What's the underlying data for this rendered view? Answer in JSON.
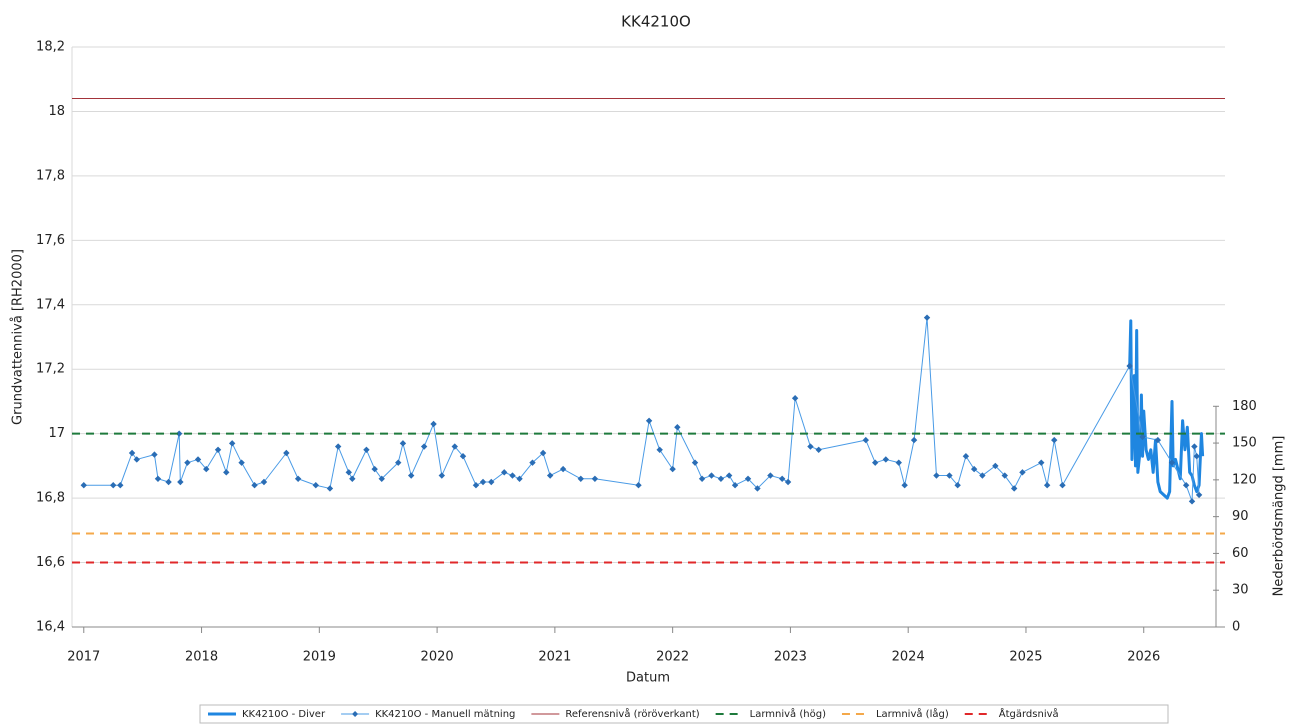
{
  "chart_data": {
    "type": "line",
    "title": "KK4210O",
    "x_label": "Datum",
    "y_label": "Grundvattennivå [RH2000]",
    "y2_label": "Nederbördsmängd [mm]",
    "xlim": [
      2016.9,
      2026.69
    ],
    "xticks": [
      2017,
      2018,
      2019,
      2020,
      2021,
      2022,
      2023,
      2024,
      2025,
      2026
    ],
    "ylim": [
      16.4,
      18.2
    ],
    "yticks": [
      {
        "value": 16.4,
        "label": "16,4"
      },
      {
        "value": 16.6,
        "label": "16,6"
      },
      {
        "value": 16.8,
        "label": "16,8"
      },
      17,
      {
        "value": 17.2,
        "label": "17,2"
      },
      {
        "value": 17.4,
        "label": "17,4"
      },
      {
        "value": 17.6,
        "label": "17,6"
      },
      {
        "value": 17.8,
        "label": "17,8"
      },
      18,
      {
        "value": 18.2,
        "label": "18,2"
      }
    ],
    "y2lim": [
      0,
      473
    ],
    "y2ticks": [
      0,
      30,
      60,
      90,
      120,
      150,
      180
    ],
    "grid": true,
    "legend": "bottom",
    "series": [
      {
        "name": "KK4210O - Diver",
        "color": "#1f86e0",
        "width": 3,
        "x": [
          2025.88,
          2025.89,
          2025.9,
          2025.92,
          2025.93,
          2025.94,
          2025.95,
          2025.97,
          2025.98,
          2025.99,
          2026.0,
          2026.02,
          2026.04,
          2026.06,
          2026.08,
          2026.1,
          2026.12,
          2026.14,
          2026.17,
          2026.2,
          2026.22,
          2026.24,
          2026.25,
          2026.27,
          2026.29,
          2026.31,
          2026.33,
          2026.35,
          2026.37,
          2026.39,
          2026.41,
          2026.43,
          2026.45,
          2026.47,
          2026.49,
          2026.5
        ],
        "values": [
          17.2,
          17.35,
          16.92,
          17.18,
          16.9,
          17.32,
          16.88,
          16.95,
          17.12,
          16.93,
          17.07,
          16.95,
          16.92,
          16.95,
          16.88,
          16.98,
          16.85,
          16.82,
          16.81,
          16.8,
          16.82,
          17.1,
          16.9,
          16.92,
          16.89,
          16.86,
          17.04,
          16.95,
          17.02,
          16.88,
          16.87,
          16.84,
          16.82,
          16.84,
          17.0,
          16.93
        ]
      },
      {
        "name": "KK4210O - Manuell mätning",
        "color": "#4a9be6",
        "width": 1,
        "marker": "diamond",
        "marker_color": "#2a6db5",
        "x": [
          2017.0,
          2017.25,
          2017.31,
          2017.41,
          2017.45,
          2017.6,
          2017.63,
          2017.72,
          2017.81,
          2017.82,
          2017.88,
          2017.97,
          2018.04,
          2018.14,
          2018.21,
          2018.26,
          2018.34,
          2018.45,
          2018.53,
          2018.72,
          2018.82,
          2018.97,
          2019.09,
          2019.16,
          2019.25,
          2019.28,
          2019.4,
          2019.47,
          2019.53,
          2019.67,
          2019.71,
          2019.78,
          2019.89,
          2019.97,
          2020.04,
          2020.15,
          2020.22,
          2020.33,
          2020.39,
          2020.46,
          2020.57,
          2020.64,
          2020.7,
          2020.81,
          2020.9,
          2020.96,
          2021.07,
          2021.22,
          2021.34,
          2021.71,
          2021.8,
          2021.89,
          2022.0,
          2022.04,
          2022.19,
          2022.25,
          2022.33,
          2022.41,
          2022.48,
          2022.53,
          2022.64,
          2022.72,
          2022.83,
          2022.93,
          2022.98,
          2023.04,
          2023.17,
          2023.24,
          2023.64,
          2023.72,
          2023.81,
          2023.92,
          2023.97,
          2024.05,
          2024.16,
          2024.24,
          2024.35,
          2024.42,
          2024.49,
          2024.56,
          2024.63,
          2024.74,
          2024.82,
          2024.9,
          2024.97,
          2025.13,
          2025.18,
          2025.24,
          2025.31,
          2025.88,
          2025.99,
          2026.12,
          2026.24,
          2026.36,
          2026.41,
          2026.43,
          2026.45,
          2026.47
        ],
        "values": [
          16.84,
          16.84,
          16.84,
          16.94,
          16.92,
          16.935,
          16.86,
          16.85,
          17.0,
          16.85,
          16.91,
          16.92,
          16.89,
          16.95,
          16.88,
          16.97,
          16.91,
          16.84,
          16.85,
          16.94,
          16.86,
          16.84,
          16.83,
          16.96,
          16.88,
          16.86,
          16.95,
          16.89,
          16.86,
          16.91,
          16.97,
          16.87,
          16.96,
          17.03,
          16.87,
          16.96,
          16.93,
          16.84,
          16.85,
          16.85,
          16.88,
          16.87,
          16.86,
          16.91,
          16.94,
          16.87,
          16.89,
          16.86,
          16.86,
          16.84,
          17.04,
          16.95,
          16.89,
          17.02,
          16.91,
          16.86,
          16.87,
          16.86,
          16.87,
          16.84,
          16.86,
          16.83,
          16.87,
          16.86,
          16.85,
          17.11,
          16.96,
          16.95,
          16.98,
          16.91,
          16.92,
          16.91,
          16.84,
          16.98,
          17.36,
          16.87,
          16.87,
          16.84,
          16.93,
          16.89,
          16.87,
          16.9,
          16.87,
          16.83,
          16.88,
          16.91,
          16.84,
          16.98,
          16.84,
          17.21,
          16.99,
          16.98,
          16.91,
          16.84,
          16.79,
          16.96,
          16.93,
          16.81
        ]
      },
      {
        "name": "Referensnivå (röröverkant)",
        "color": "#a3333a",
        "width": 1,
        "value": 18.04,
        "dash": "solid"
      },
      {
        "name": "Larmnivå (hög)",
        "color": "#1e7a3c",
        "width": 2,
        "value": 17.0,
        "dash": "dashed"
      },
      {
        "name": "Larmnivå (låg)",
        "color": "#f4a84a",
        "width": 2,
        "value": 16.69,
        "dash": "dashed"
      },
      {
        "name": "Åtgärdsnivå",
        "color": "#e0282a",
        "width": 2,
        "value": 16.6,
        "dash": "dashed"
      }
    ]
  }
}
